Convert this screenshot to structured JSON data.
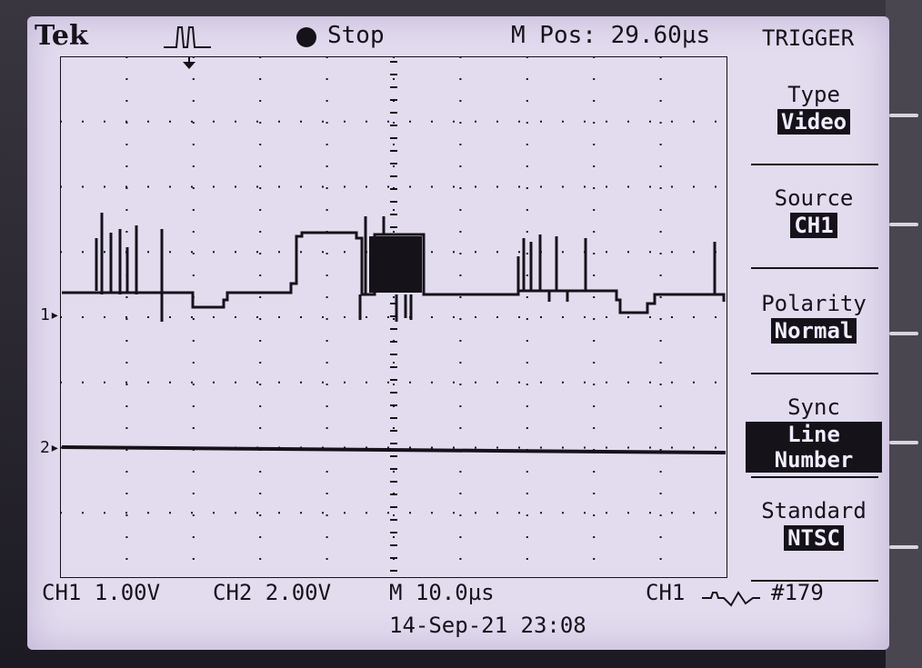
{
  "header": {
    "brand": "Tek",
    "acquisition_icon": "pulse-icon",
    "run_state": "Stop",
    "horizontal_position": "M Pos: 29.60µs"
  },
  "menu": {
    "title": "TRIGGER",
    "items": [
      {
        "label": "Type",
        "value": "Video"
      },
      {
        "label": "Source",
        "value": "CH1"
      },
      {
        "label": "Polarity",
        "value": "Normal"
      },
      {
        "label": "Sync",
        "value": "Line Number"
      },
      {
        "label": "Standard",
        "value": "NTSC"
      }
    ]
  },
  "footer": {
    "ch1_scale": "CH1  1.00V",
    "ch2_scale": "CH2  2.00V",
    "timebase": "M 10.0µs",
    "trigger_source": "CH1",
    "trigger_icon": "video-trigger-icon",
    "line_number": "#179",
    "timestamp": "14-Sep-21 23:08"
  },
  "markers": {
    "ch1": "1",
    "ch2": "2"
  },
  "colors": {
    "screen": "#e3dcef",
    "trace": "#15121a",
    "highlight_bg": "#15121a",
    "highlight_fg": "#f2ecff"
  }
}
